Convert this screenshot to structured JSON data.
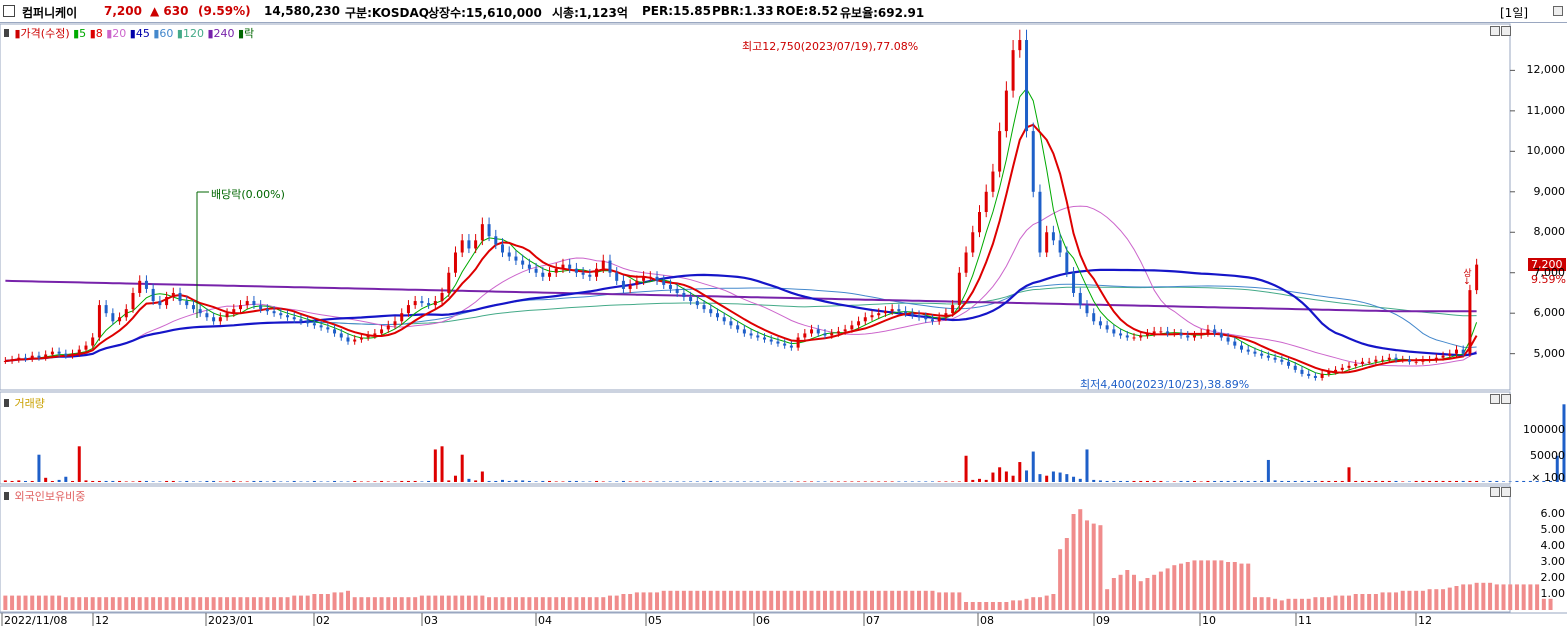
{
  "header": {
    "name": "컴퍼니케이",
    "price": "7,200",
    "change": "▲ 630",
    "change_pct": "(9.59%)",
    "volume": "14,580,230",
    "market": "구분:KOSDAQ",
    "shares": "상장수:15,610,000",
    "mcap": "시총:1,123억",
    "per": "PER:15.85",
    "pbr": "PBR:1.33",
    "roe": "ROE:8.52",
    "float": "유보율:692.91",
    "period": "[1일]"
  },
  "price_panel": {
    "legend": [
      {
        "text": "가격(수정)",
        "color": "#cc0000"
      },
      {
        "text": "5",
        "color": "#00aa00"
      },
      {
        "text": "8",
        "color": "#dd0000"
      },
      {
        "text": "20",
        "color": "#cc66cc"
      },
      {
        "text": "45",
        "color": "#0000aa"
      },
      {
        "text": "60",
        "color": "#4488cc"
      },
      {
        "text": "120",
        "color": "#44aa88"
      },
      {
        "text": "240",
        "color": "#7722aa"
      },
      {
        "text": "락",
        "color": "#006600"
      }
    ],
    "high_annotation": "최고12,750(2023/07/19),77.08%",
    "low_annotation": "최저4,400(2023/10/23),38.89%",
    "dividend_annotation": "배당락(0.00%)",
    "last_price_tag": "7,200",
    "last_pct_tag": "9.59%",
    "small_mark": "상→",
    "y_ticks": [
      "12,000",
      "11,000",
      "10,000",
      "9,000",
      "8,000",
      "7,000",
      "6,000",
      "5,000"
    ]
  },
  "volume_panel": {
    "legend": "거래량",
    "y_ticks": [
      "100000",
      "50000",
      "× 100"
    ]
  },
  "foreign_panel": {
    "legend": "외국인보유비중",
    "y_ticks": [
      "6.00",
      "5.00",
      "4.00",
      "3.00",
      "2.00",
      "1.00"
    ]
  },
  "x_axis": [
    "2022/11/08",
    "12",
    "2023/01",
    "02",
    "03",
    "04",
    "05",
    "06",
    "07",
    "08",
    "09",
    "10",
    "11",
    "12"
  ],
  "colors": {
    "up": "#dd0000",
    "down": "#1e5fc8",
    "foreign": "#f08c8c",
    "ma240": "#7722aa",
    "ma45": "#1515c8"
  },
  "chart_data": {
    "type": "candlestick",
    "title": "컴퍼니케이",
    "y_range": [
      4300,
      12800
    ],
    "closes": [
      4820,
      4850,
      4900,
      4870,
      4950,
      4900,
      4980,
      5050,
      5000,
      4950,
      5000,
      5100,
      5200,
      5400,
      6200,
      6000,
      5800,
      5900,
      6100,
      6500,
      6800,
      6600,
      6300,
      6200,
      6400,
      6500,
      6300,
      6200,
      6100,
      6000,
      5900,
      5800,
      5900,
      6000,
      6100,
      6200,
      6300,
      6200,
      6100,
      6050,
      6000,
      5950,
      5900,
      5850,
      5800,
      5750,
      5700,
      5650,
      5600,
      5500,
      5400,
      5300,
      5350,
      5400,
      5450,
      5500,
      5600,
      5700,
      5800,
      6000,
      6200,
      6300,
      6250,
      6200,
      6300,
      6500,
      7000,
      7500,
      7800,
      7600,
      7800,
      8200,
      7900,
      7700,
      7500,
      7400,
      7300,
      7200,
      7100,
      7000,
      6900,
      7000,
      7100,
      7200,
      7100,
      7000,
      6950,
      6900,
      7100,
      7300,
      7000,
      6800,
      6600,
      6700,
      6800,
      6900,
      6900,
      6800,
      6700,
      6600,
      6500,
      6400,
      6300,
      6200,
      6100,
      6000,
      5900,
      5800,
      5700,
      5600,
      5500,
      5450,
      5400,
      5350,
      5300,
      5250,
      5200,
      5150,
      5400,
      5500,
      5600,
      5500,
      5450,
      5500,
      5550,
      5600,
      5700,
      5800,
      5900,
      5950,
      6000,
      6050,
      6100,
      6050,
      6000,
      5950,
      5900,
      5850,
      5800,
      5900,
      6000,
      6200,
      7000,
      7500,
      8000,
      8500,
      9000,
      9500,
      10500,
      11500,
      12500,
      12750,
      10500,
      9000,
      7500,
      8000,
      7800,
      7500,
      7000,
      6500,
      6200,
      6000,
      5800,
      5700,
      5600,
      5500,
      5450,
      5400,
      5400,
      5450,
      5500,
      5550,
      5550,
      5500,
      5500,
      5450,
      5400,
      5450,
      5500,
      5600,
      5500,
      5400,
      5300,
      5200,
      5100,
      5050,
      5000,
      4950,
      4900,
      4850,
      4800,
      4700,
      4600,
      4500,
      4450,
      4400,
      4500,
      4550,
      4600,
      4650,
      4700,
      4750,
      4800,
      4800,
      4850,
      4850,
      4900,
      4850,
      4850,
      4800,
      4800,
      4850,
      4850,
      4900,
      4950,
      5000,
      5100,
      5000,
      6570,
      7200
    ],
    "ma45_note": "moving averages drawn from closes",
    "volume": [
      3,
      2,
      3,
      2,
      2,
      52,
      8,
      2,
      4,
      10,
      2,
      68,
      3,
      2,
      2,
      2,
      2,
      2,
      1,
      1,
      2,
      2,
      1,
      1,
      2,
      2,
      1,
      2,
      1,
      1,
      2,
      2,
      1,
      1,
      2,
      1,
      1,
      2,
      2,
      1,
      2,
      1,
      1,
      2,
      1,
      1,
      2,
      1,
      1,
      2,
      1,
      1,
      2,
      1,
      1,
      1,
      2,
      1,
      1,
      2,
      2,
      2,
      1,
      2,
      62,
      68,
      3,
      12,
      52,
      6,
      3,
      20,
      2,
      2,
      4,
      2,
      3,
      3,
      2,
      1,
      2,
      2,
      1,
      1,
      2,
      2,
      1,
      1,
      2,
      1,
      1,
      1,
      2,
      1,
      1,
      1,
      1,
      1,
      1,
      1,
      1,
      1,
      1,
      1,
      1,
      2,
      1,
      1,
      1,
      1,
      1,
      1,
      1,
      1,
      1,
      1,
      1,
      1,
      1,
      1,
      1,
      1,
      1,
      1,
      1,
      1,
      1,
      1,
      1,
      1,
      1,
      1,
      1,
      1,
      1,
      1,
      1,
      1,
      1,
      1,
      1,
      1,
      1,
      50,
      4,
      6,
      4,
      18,
      28,
      20,
      12,
      38,
      22,
      58,
      15,
      12,
      20,
      18,
      15,
      10,
      6,
      62,
      4,
      3,
      2,
      2,
      2,
      2,
      2,
      2,
      2,
      2,
      2,
      1,
      1,
      2,
      2,
      2,
      1,
      2,
      2,
      2,
      2,
      2,
      2,
      2,
      2,
      2,
      42,
      3,
      2,
      2,
      2,
      2,
      2,
      2,
      2,
      2,
      2,
      2,
      28,
      2,
      2,
      2,
      2,
      2,
      2,
      2,
      1,
      1,
      2,
      2,
      2,
      2,
      2,
      2,
      2,
      2,
      2,
      2,
      1,
      2,
      2,
      1,
      1,
      2,
      2,
      2,
      2,
      2,
      2,
      50,
      148
    ],
    "foreign_pct": [
      0.9,
      0.9,
      0.9,
      0.9,
      0.9,
      0.9,
      0.9,
      0.9,
      0.9,
      0.8,
      0.8,
      0.8,
      0.8,
      0.8,
      0.8,
      0.8,
      0.8,
      0.8,
      0.8,
      0.8,
      0.8,
      0.8,
      0.8,
      0.8,
      0.8,
      0.8,
      0.8,
      0.8,
      0.8,
      0.8,
      0.8,
      0.8,
      0.8,
      0.8,
      0.8,
      0.8,
      0.8,
      0.8,
      0.8,
      0.8,
      0.8,
      0.8,
      0.8,
      0.9,
      0.9,
      0.9,
      1.0,
      1.0,
      1.0,
      1.1,
      1.1,
      1.2,
      0.8,
      0.8,
      0.8,
      0.8,
      0.8,
      0.8,
      0.8,
      0.8,
      0.8,
      0.8,
      0.9,
      0.9,
      0.9,
      0.9,
      0.9,
      0.9,
      0.9,
      0.9,
      0.9,
      0.9,
      0.8,
      0.8,
      0.8,
      0.8,
      0.8,
      0.8,
      0.8,
      0.8,
      0.8,
      0.8,
      0.8,
      0.8,
      0.8,
      0.8,
      0.8,
      0.8,
      0.8,
      0.8,
      0.9,
      0.9,
      1.0,
      1.0,
      1.1,
      1.1,
      1.1,
      1.1,
      1.2,
      1.2,
      1.2,
      1.2,
      1.2,
      1.2,
      1.2,
      1.2,
      1.2,
      1.2,
      1.2,
      1.2,
      1.2,
      1.2,
      1.2,
      1.2,
      1.2,
      1.2,
      1.2,
      1.2,
      1.2,
      1.2,
      1.2,
      1.2,
      1.2,
      1.2,
      1.2,
      1.2,
      1.2,
      1.2,
      1.2,
      1.2,
      1.2,
      1.2,
      1.2,
      1.2,
      1.2,
      1.2,
      1.2,
      1.2,
      1.2,
      1.1,
      1.1,
      1.1,
      1.1,
      0.5,
      0.5,
      0.5,
      0.5,
      0.5,
      0.5,
      0.5,
      0.6,
      0.6,
      0.7,
      0.8,
      0.8,
      0.9,
      1.0,
      3.8,
      4.5,
      6.0,
      6.3,
      5.6,
      5.4,
      5.3,
      1.3,
      2.0,
      2.2,
      2.5,
      2.2,
      1.8,
      2.0,
      2.2,
      2.4,
      2.6,
      2.8,
      2.9,
      3.0,
      3.1,
      3.1,
      3.1,
      3.1,
      3.1,
      3.0,
      3.0,
      2.9,
      2.9,
      0.8,
      0.8,
      0.8,
      0.7,
      0.6,
      0.7,
      0.7,
      0.7,
      0.7,
      0.8,
      0.8,
      0.8,
      0.9,
      0.9,
      0.9,
      1.0,
      1.0,
      1.0,
      1.0,
      1.1,
      1.1,
      1.1,
      1.2,
      1.2,
      1.2,
      1.2,
      1.3,
      1.3,
      1.3,
      1.4,
      1.5,
      1.6,
      1.6,
      1.7,
      1.7,
      1.7,
      1.6,
      1.6,
      1.6,
      1.6,
      1.6,
      1.6,
      1.6,
      0.7,
      0.7
    ]
  }
}
